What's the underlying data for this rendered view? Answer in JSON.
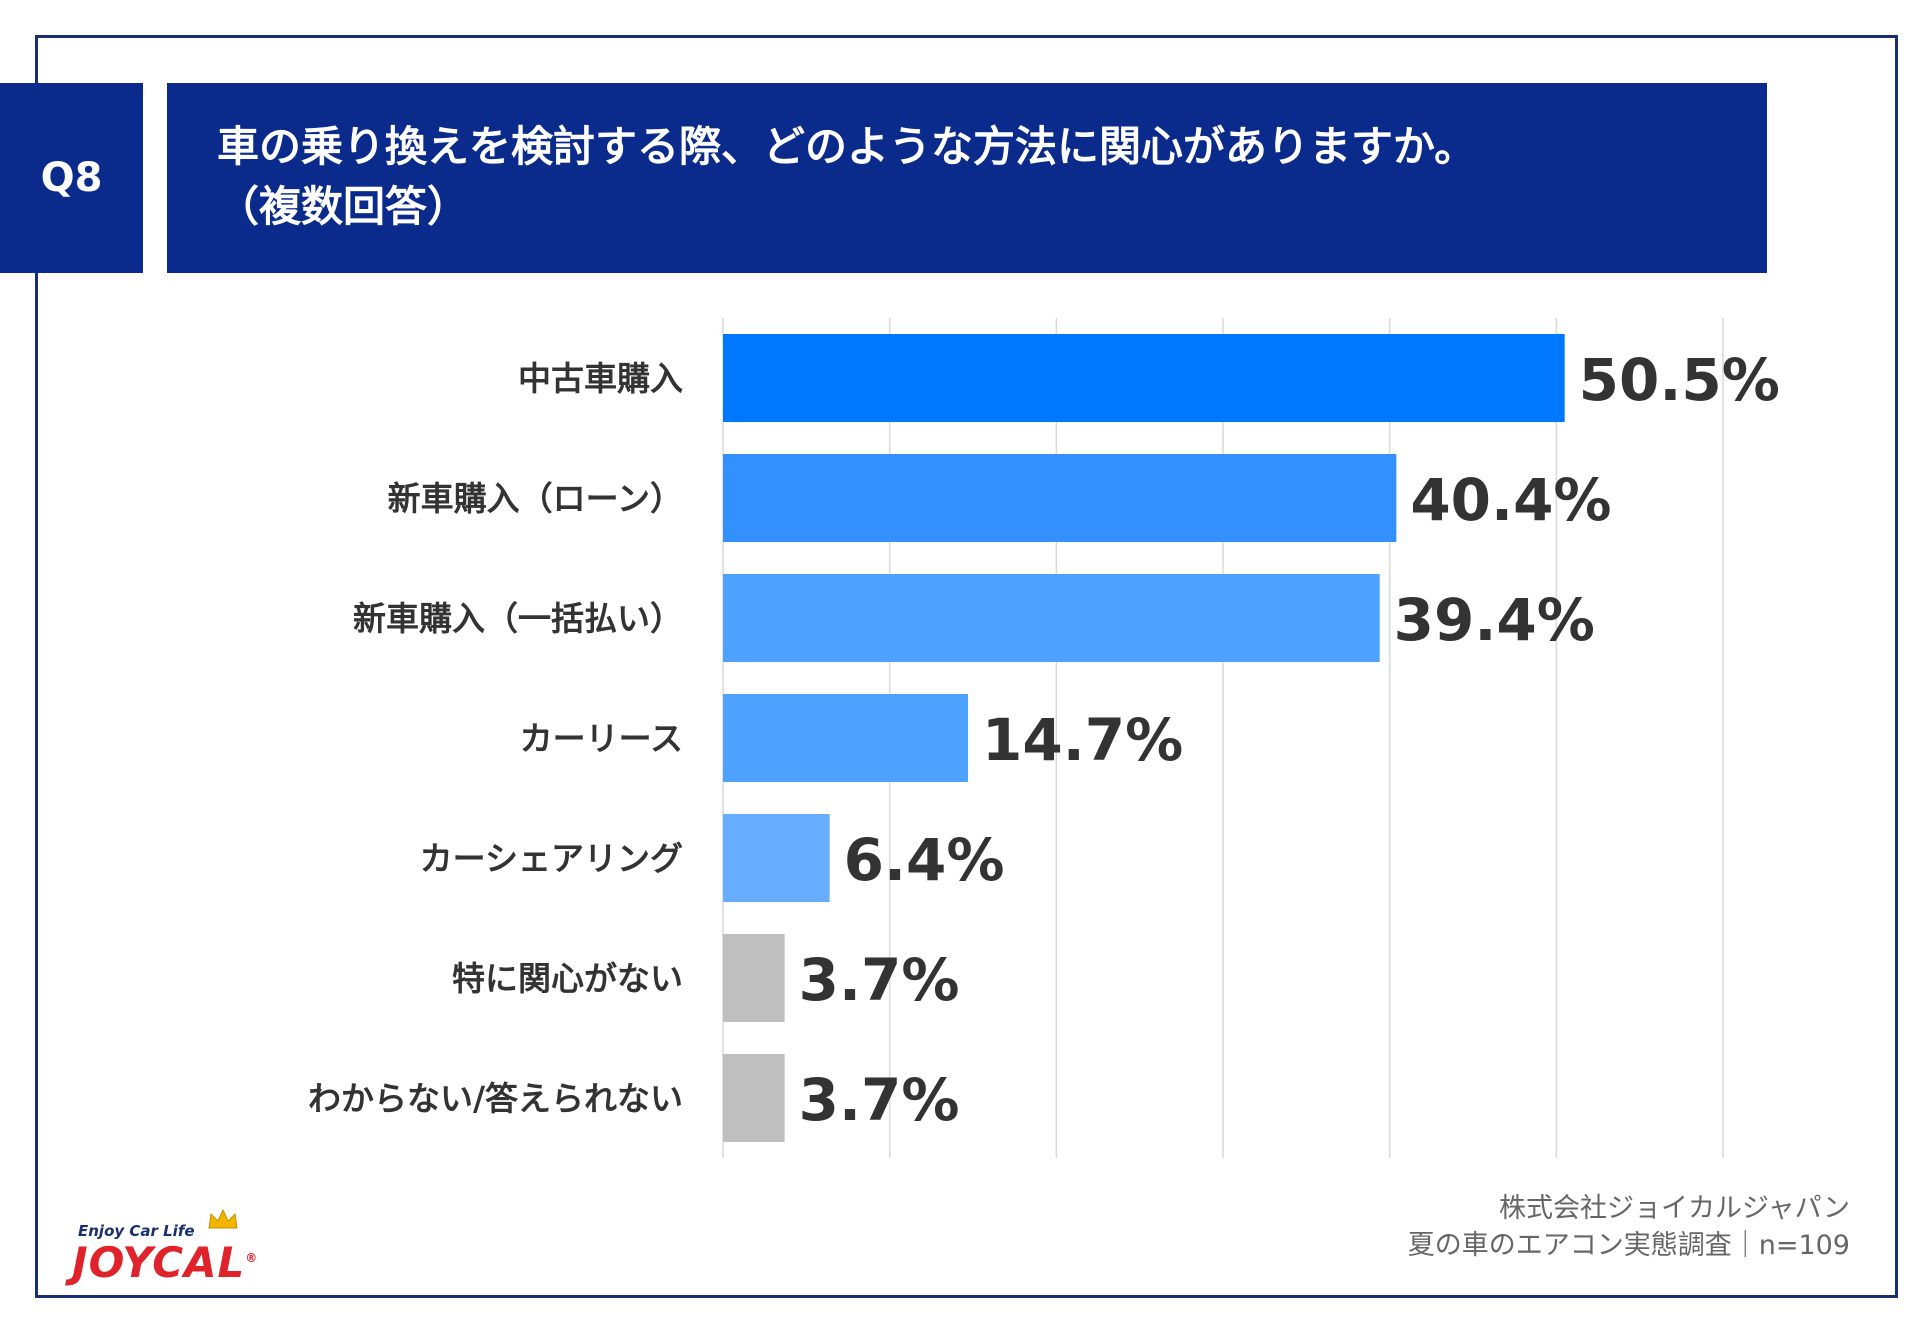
{
  "question": {
    "number": "Q8",
    "title_line1": "車の乗り換えを検討する際、どのような方法に関心がありますか。",
    "title_line2": "（複数回答）"
  },
  "colors": {
    "header_bg": "#0a2a8c",
    "frame": "#1a2f6e",
    "bar_top": "#0077ff",
    "bar_mid": "#3391ff",
    "bar_light": "#4da1ff",
    "bar_pale": "#66adff",
    "bar_none": "#bfbfbf",
    "gridline": "#d9d9d9"
  },
  "chart_data": {
    "type": "bar",
    "orientation": "horizontal",
    "categories": [
      "中古車購入",
      "新車購入（ローン）",
      "新車購入（一括払い）",
      "カーリース",
      "カーシェアリング",
      "特に関心がない",
      "わからない/答えられない"
    ],
    "values": [
      50.5,
      40.4,
      39.4,
      14.7,
      6.4,
      3.7,
      3.7
    ],
    "value_labels": [
      "50.5%",
      "40.4%",
      "39.4%",
      "14.7%",
      "6.4%",
      "3.7%",
      "3.7%"
    ],
    "bar_colors": [
      "#0077ff",
      "#3391ff",
      "#4da1ff",
      "#4da1ff",
      "#66adff",
      "#bfbfbf",
      "#bfbfbf"
    ],
    "xlim": [
      0,
      60
    ],
    "grid": true,
    "gridline_step": 10
  },
  "footer": {
    "company": "株式会社ジョイカルジャパン",
    "survey": "夏の車のエアコン実態調査｜n=109"
  },
  "logo": {
    "tagline": "Enjoy Car Life",
    "wordmark": "JOYCAL",
    "registered": "®"
  }
}
